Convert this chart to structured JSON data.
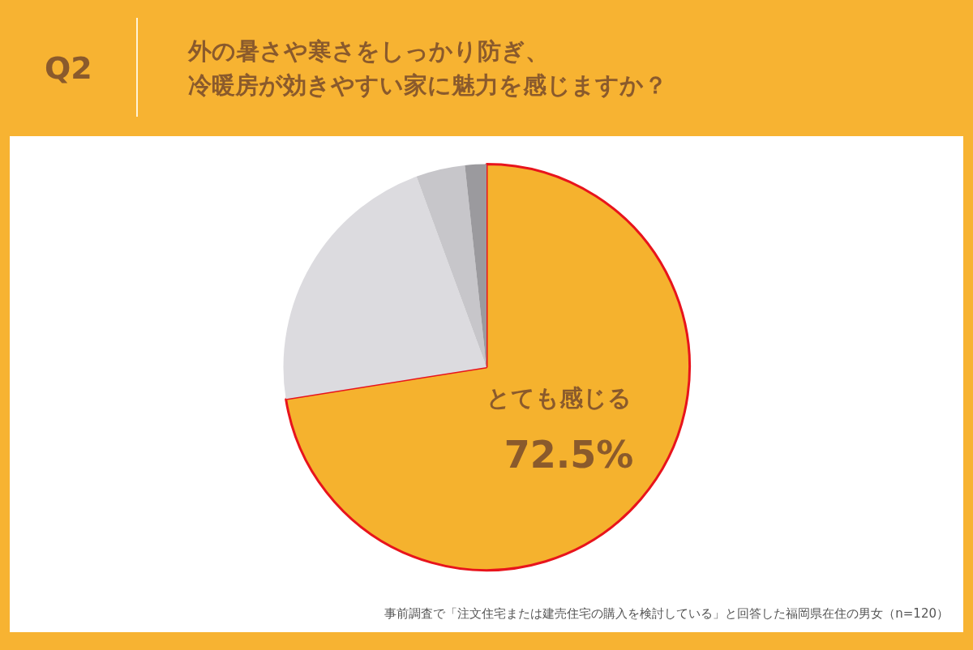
{
  "chart_data": {
    "type": "pie",
    "title": "Q2",
    "subtitle": "外の暑さや寒さをしっかり防ぎ、冷暖房が効きやすい家に魅力を感じますか？",
    "categories": [
      "とても感じる",
      null,
      null,
      null
    ],
    "values": [
      72.5,
      21.9,
      3.9,
      1.7
    ],
    "colors": [
      "#f5b22e",
      "#dcdbdf",
      "#c7c6ca",
      "#9b9a9e"
    ],
    "value_labels": [
      "72.5%",
      null,
      null,
      null
    ],
    "legend": false,
    "annotations": [
      "事前調査で「注文住宅または建売住宅の購入を検討している」と回答した福岡県在住の男女（n=120）"
    ]
  }
}
